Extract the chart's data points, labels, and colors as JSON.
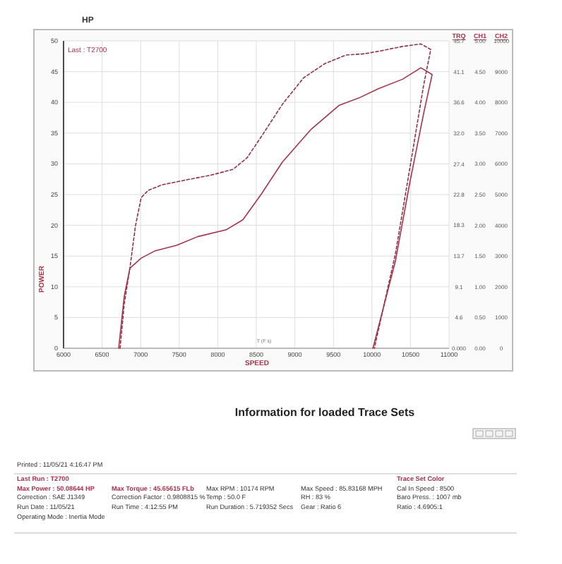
{
  "chart_data": [
    {
      "type": "line",
      "title": "HP",
      "xlabel": "SPEED",
      "ylabel": "POWER",
      "y2label": "TRQ",
      "y3label": "CH1",
      "annotations": [
        "Last : T2700",
        "T (F s)",
        "CH2",
        "10000",
        "9000",
        "8000",
        "7000",
        "6000",
        "5000",
        "4000",
        "3000",
        "2000",
        "1000",
        "0"
      ],
      "xlim": [
        6000,
        11000
      ],
      "xticks": [
        6000,
        6500,
        7000,
        7500,
        8000,
        8500,
        9000,
        9500,
        10000,
        10500,
        11000
      ],
      "ylim": [
        0,
        50
      ],
      "yticks": [
        0,
        5,
        10,
        15,
        20,
        25,
        30,
        35,
        40,
        45,
        50
      ],
      "y2lim": [
        0,
        45.7
      ],
      "y2ticks": [
        {
          "value": 0,
          "label": "0.000"
        },
        4.6,
        9.1,
        13.7,
        18.3,
        22.8,
        27.4,
        {
          "value": 32,
          "label": "32.0"
        },
        36.6,
        41.1,
        45.7
      ],
      "y3lim": [
        0,
        5
      ],
      "y3ticks": [
        {
          "value": 0,
          "label": "0.00"
        },
        {
          "value": 0.5,
          "label": "0.50"
        },
        {
          "value": 1,
          "label": "1.00"
        },
        {
          "value": 1.5,
          "label": "1.50"
        },
        {
          "value": 2,
          "label": "2.00"
        },
        {
          "value": 2.5,
          "label": "2.50"
        },
        {
          "value": 3,
          "label": "3.00"
        },
        {
          "value": 3.5,
          "label": "3.50"
        },
        {
          "value": 4,
          "label": "4.00"
        },
        {
          "value": 4.5,
          "label": "4.50"
        },
        {
          "value": 5,
          "label": "5.00"
        }
      ],
      "grid": true,
      "series": [
        {
          "color": "#8e3347",
          "line_style": "dashed",
          "x": [
            6733,
            6788,
            6861,
            6934,
            7007,
            7099,
            7282,
            7557,
            7923,
            8198,
            8381,
            8564,
            8839,
            9114,
            9389,
            9664,
            9902,
            10122,
            10397,
            10635,
            10763,
            10672,
            10489,
            10305,
            10031
          ],
          "values": [
            0,
            7.3,
            13.1,
            20.0,
            24.5,
            25.7,
            26.6,
            27.3,
            28.2,
            29.1,
            31.0,
            34.4,
            39.7,
            44.0,
            46.3,
            47.7,
            47.9,
            48.4,
            49.1,
            49.5,
            48.6,
            42.9,
            29.1,
            15.4,
            0
          ]
        },
        {
          "color": "#a3344a",
          "line_style": "solid",
          "axis": "y2",
          "x": [
            6715,
            6788,
            6861,
            7007,
            7190,
            7465,
            7740,
            8106,
            8326,
            8564,
            8839,
            9206,
            9572,
            9847,
            10085,
            10397,
            10635,
            10781,
            10672,
            10489,
            10305,
            10013
          ],
          "values": [
            0,
            7.8,
            11.9,
            13.4,
            14.5,
            15.3,
            16.6,
            17.6,
            19.1,
            22.9,
            27.7,
            32.5,
            36.1,
            37.3,
            38.6,
            40.0,
            41.7,
            40.7,
            35.0,
            24.5,
            13.0,
            0
          ]
        }
      ]
    },
    {
      "type": "other",
      "title": "Information for loaded Trace Sets",
      "annotations": [
        "Printed : 11/05/21 4:16:47 PM",
        "Last Run : T2700",
        "Max Power : 50.08644 HP",
        "Correction : SAE J1349",
        "Run Date : 11/05/21",
        "Operating Mode : Inertia Mode",
        "Max Torque : 45.65615 FLb",
        "Correction Factor : 0.9808815 %",
        "Run Time : 4:12:55 PM",
        "Max RPM : 10174 RPM",
        "Temp : 50.0 F",
        "Run Duration : 5.719352 Secs",
        "Max Speed : 85.83168 MPH",
        "RH : 83 %",
        "Gear : Ratio 6",
        "Trace Set Color",
        "Cal In Speed : 8500",
        "Baro Press. : 1007 mb",
        "Ratio : 4.6905:1"
      ]
    }
  ]
}
